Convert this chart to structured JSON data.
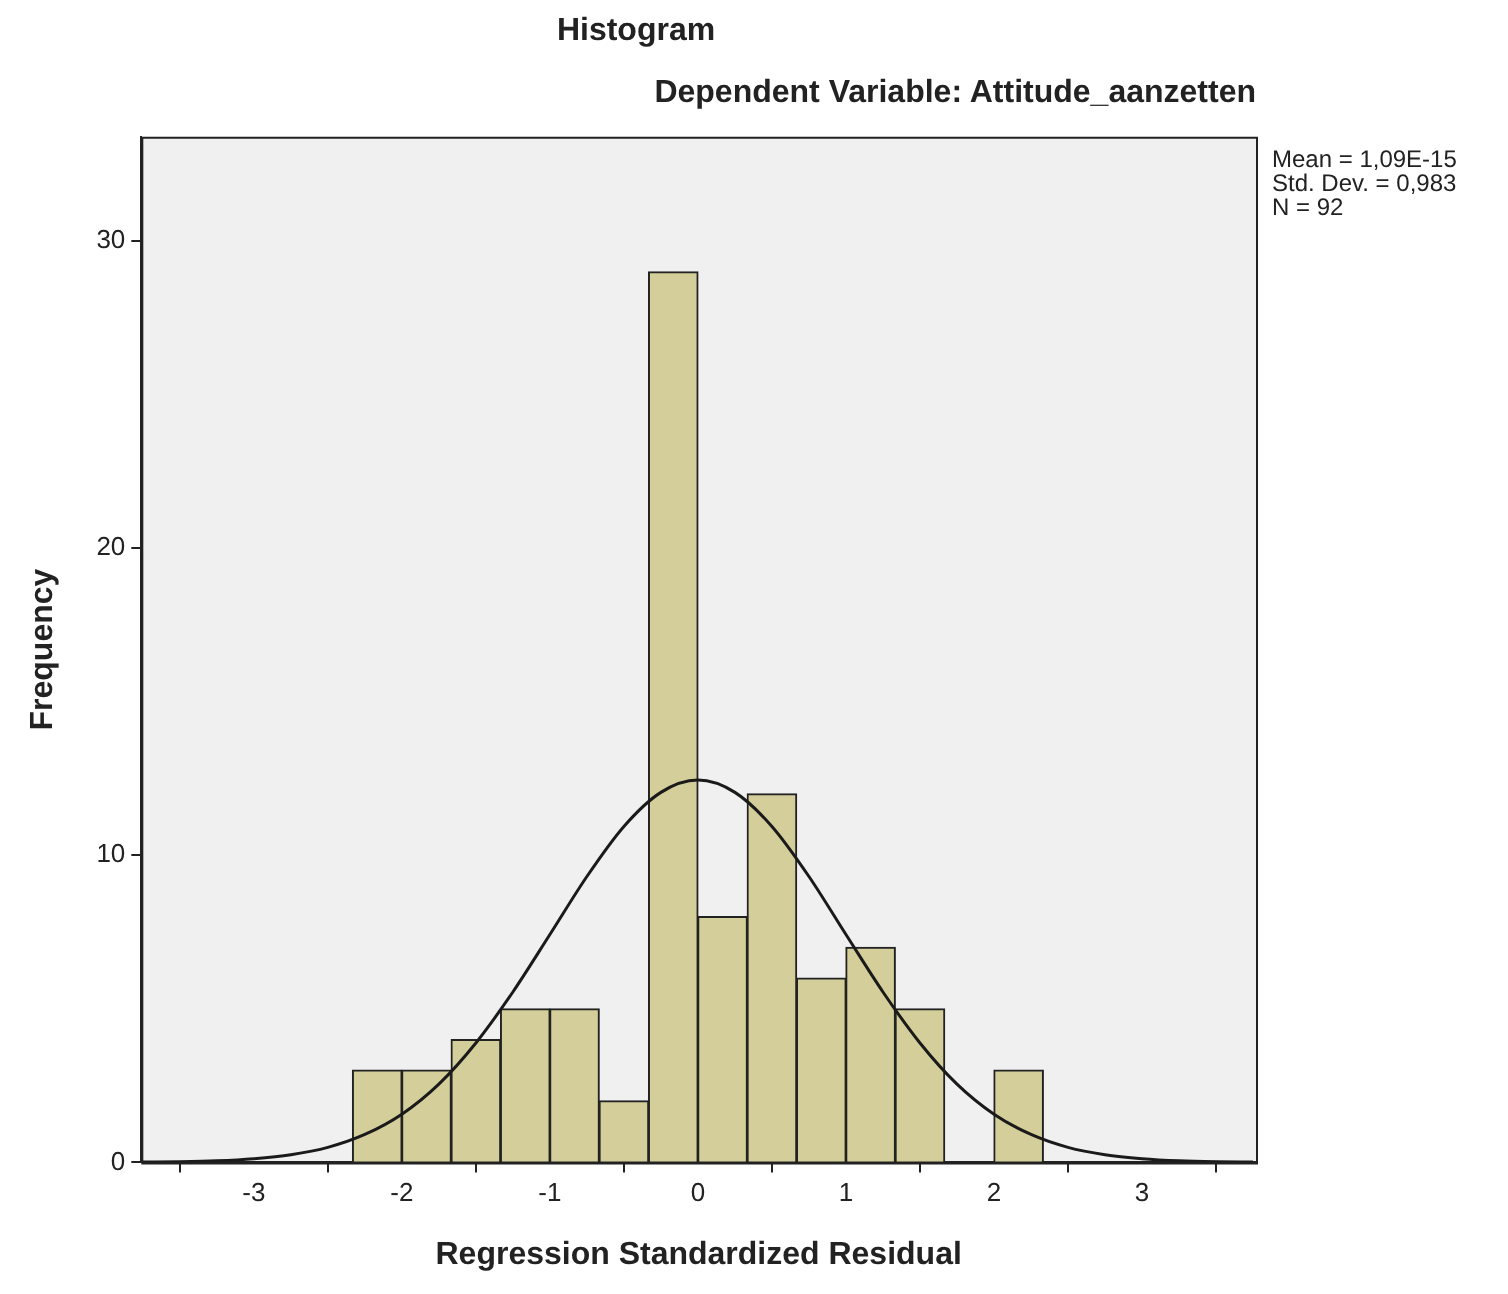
{
  "chart_data": {
    "type": "histogram",
    "title": "Histogram",
    "subtitle": "Dependent Variable: Attitude_aanzetten",
    "xlabel": "Regression Standardized Residual",
    "ylabel": "Frequency",
    "bins": [
      -2.333,
      -2,
      -1.667,
      -1.333,
      -1,
      -0.667,
      -0.333,
      0,
      0.333,
      0.667,
      1,
      1.333,
      1.667,
      2,
      2.333
    ],
    "values": [
      3,
      3,
      4,
      5,
      5,
      2,
      29,
      8,
      12,
      6,
      7,
      5,
      0,
      3
    ],
    "color": "#d4cf9a",
    "series": [
      {
        "type": "line",
        "color": "#1a1a1a",
        "marker": "none",
        "x": [
          -3.75,
          -3.5,
          -3.25,
          -3,
          -2.75,
          -2.5,
          -2.25,
          -2,
          -1.75,
          -1.5,
          -1.25,
          -1,
          -0.75,
          -0.5,
          -0.25,
          0,
          0.25,
          0.5,
          0.75,
          1,
          1.25,
          1.5,
          1.75,
          2,
          2.25,
          2.5,
          2.75,
          3,
          3.25,
          3.5,
          3.75
        ],
        "values": [
          0.01,
          0.02,
          0.05,
          0.12,
          0.25,
          0.49,
          0.91,
          1.57,
          2.55,
          3.89,
          5.55,
          7.42,
          9.31,
          10.94,
          12.05,
          12.45,
          12.05,
          10.94,
          9.31,
          7.42,
          5.55,
          3.89,
          2.55,
          1.57,
          0.91,
          0.49,
          0.25,
          0.12,
          0.05,
          0.02,
          0.01
        ]
      }
    ],
    "xlim": [
      -3.76,
      3.77
    ],
    "xticks": [
      -3,
      -2,
      -1,
      0,
      1,
      2,
      3
    ],
    "ylim": [
      0,
      33.4
    ],
    "yticks": [
      0,
      10,
      20,
      30
    ],
    "grid": false,
    "legend": false,
    "annotations": [
      "Mean = 1,09E-15",
      "Std. Dev. = 0,983",
      "N = 92"
    ]
  }
}
